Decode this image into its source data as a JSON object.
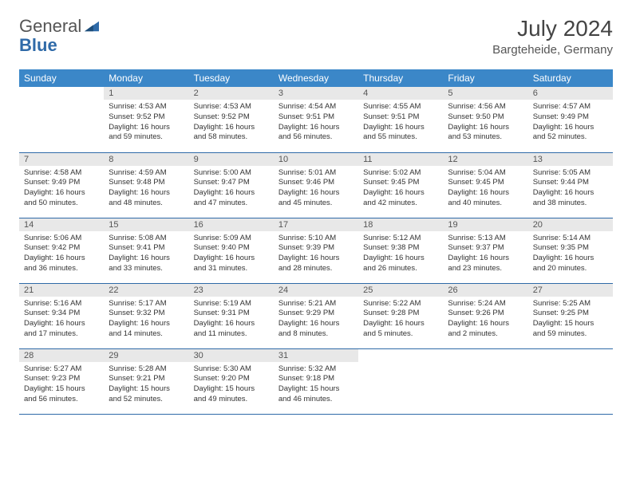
{
  "logo": {
    "general": "General",
    "blue": "Blue"
  },
  "title": "July 2024",
  "location": "Bargteheide, Germany",
  "colors": {
    "header_bg": "#3b87c8",
    "header_text": "#ffffff",
    "daynum_bg": "#e8e8e8",
    "border": "#2f6aa8",
    "logo_blue": "#2f6aa8"
  },
  "weekdays": [
    "Sunday",
    "Monday",
    "Tuesday",
    "Wednesday",
    "Thursday",
    "Friday",
    "Saturday"
  ],
  "weeks": [
    [
      null,
      {
        "n": "1",
        "sr": "Sunrise: 4:53 AM",
        "ss": "Sunset: 9:52 PM",
        "dl": "Daylight: 16 hours and 59 minutes."
      },
      {
        "n": "2",
        "sr": "Sunrise: 4:53 AM",
        "ss": "Sunset: 9:52 PM",
        "dl": "Daylight: 16 hours and 58 minutes."
      },
      {
        "n": "3",
        "sr": "Sunrise: 4:54 AM",
        "ss": "Sunset: 9:51 PM",
        "dl": "Daylight: 16 hours and 56 minutes."
      },
      {
        "n": "4",
        "sr": "Sunrise: 4:55 AM",
        "ss": "Sunset: 9:51 PM",
        "dl": "Daylight: 16 hours and 55 minutes."
      },
      {
        "n": "5",
        "sr": "Sunrise: 4:56 AM",
        "ss": "Sunset: 9:50 PM",
        "dl": "Daylight: 16 hours and 53 minutes."
      },
      {
        "n": "6",
        "sr": "Sunrise: 4:57 AM",
        "ss": "Sunset: 9:49 PM",
        "dl": "Daylight: 16 hours and 52 minutes."
      }
    ],
    [
      {
        "n": "7",
        "sr": "Sunrise: 4:58 AM",
        "ss": "Sunset: 9:49 PM",
        "dl": "Daylight: 16 hours and 50 minutes."
      },
      {
        "n": "8",
        "sr": "Sunrise: 4:59 AM",
        "ss": "Sunset: 9:48 PM",
        "dl": "Daylight: 16 hours and 48 minutes."
      },
      {
        "n": "9",
        "sr": "Sunrise: 5:00 AM",
        "ss": "Sunset: 9:47 PM",
        "dl": "Daylight: 16 hours and 47 minutes."
      },
      {
        "n": "10",
        "sr": "Sunrise: 5:01 AM",
        "ss": "Sunset: 9:46 PM",
        "dl": "Daylight: 16 hours and 45 minutes."
      },
      {
        "n": "11",
        "sr": "Sunrise: 5:02 AM",
        "ss": "Sunset: 9:45 PM",
        "dl": "Daylight: 16 hours and 42 minutes."
      },
      {
        "n": "12",
        "sr": "Sunrise: 5:04 AM",
        "ss": "Sunset: 9:45 PM",
        "dl": "Daylight: 16 hours and 40 minutes."
      },
      {
        "n": "13",
        "sr": "Sunrise: 5:05 AM",
        "ss": "Sunset: 9:44 PM",
        "dl": "Daylight: 16 hours and 38 minutes."
      }
    ],
    [
      {
        "n": "14",
        "sr": "Sunrise: 5:06 AM",
        "ss": "Sunset: 9:42 PM",
        "dl": "Daylight: 16 hours and 36 minutes."
      },
      {
        "n": "15",
        "sr": "Sunrise: 5:08 AM",
        "ss": "Sunset: 9:41 PM",
        "dl": "Daylight: 16 hours and 33 minutes."
      },
      {
        "n": "16",
        "sr": "Sunrise: 5:09 AM",
        "ss": "Sunset: 9:40 PM",
        "dl": "Daylight: 16 hours and 31 minutes."
      },
      {
        "n": "17",
        "sr": "Sunrise: 5:10 AM",
        "ss": "Sunset: 9:39 PM",
        "dl": "Daylight: 16 hours and 28 minutes."
      },
      {
        "n": "18",
        "sr": "Sunrise: 5:12 AM",
        "ss": "Sunset: 9:38 PM",
        "dl": "Daylight: 16 hours and 26 minutes."
      },
      {
        "n": "19",
        "sr": "Sunrise: 5:13 AM",
        "ss": "Sunset: 9:37 PM",
        "dl": "Daylight: 16 hours and 23 minutes."
      },
      {
        "n": "20",
        "sr": "Sunrise: 5:14 AM",
        "ss": "Sunset: 9:35 PM",
        "dl": "Daylight: 16 hours and 20 minutes."
      }
    ],
    [
      {
        "n": "21",
        "sr": "Sunrise: 5:16 AM",
        "ss": "Sunset: 9:34 PM",
        "dl": "Daylight: 16 hours and 17 minutes."
      },
      {
        "n": "22",
        "sr": "Sunrise: 5:17 AM",
        "ss": "Sunset: 9:32 PM",
        "dl": "Daylight: 16 hours and 14 minutes."
      },
      {
        "n": "23",
        "sr": "Sunrise: 5:19 AM",
        "ss": "Sunset: 9:31 PM",
        "dl": "Daylight: 16 hours and 11 minutes."
      },
      {
        "n": "24",
        "sr": "Sunrise: 5:21 AM",
        "ss": "Sunset: 9:29 PM",
        "dl": "Daylight: 16 hours and 8 minutes."
      },
      {
        "n": "25",
        "sr": "Sunrise: 5:22 AM",
        "ss": "Sunset: 9:28 PM",
        "dl": "Daylight: 16 hours and 5 minutes."
      },
      {
        "n": "26",
        "sr": "Sunrise: 5:24 AM",
        "ss": "Sunset: 9:26 PM",
        "dl": "Daylight: 16 hours and 2 minutes."
      },
      {
        "n": "27",
        "sr": "Sunrise: 5:25 AM",
        "ss": "Sunset: 9:25 PM",
        "dl": "Daylight: 15 hours and 59 minutes."
      }
    ],
    [
      {
        "n": "28",
        "sr": "Sunrise: 5:27 AM",
        "ss": "Sunset: 9:23 PM",
        "dl": "Daylight: 15 hours and 56 minutes."
      },
      {
        "n": "29",
        "sr": "Sunrise: 5:28 AM",
        "ss": "Sunset: 9:21 PM",
        "dl": "Daylight: 15 hours and 52 minutes."
      },
      {
        "n": "30",
        "sr": "Sunrise: 5:30 AM",
        "ss": "Sunset: 9:20 PM",
        "dl": "Daylight: 15 hours and 49 minutes."
      },
      {
        "n": "31",
        "sr": "Sunrise: 5:32 AM",
        "ss": "Sunset: 9:18 PM",
        "dl": "Daylight: 15 hours and 46 minutes."
      },
      null,
      null,
      null
    ]
  ]
}
